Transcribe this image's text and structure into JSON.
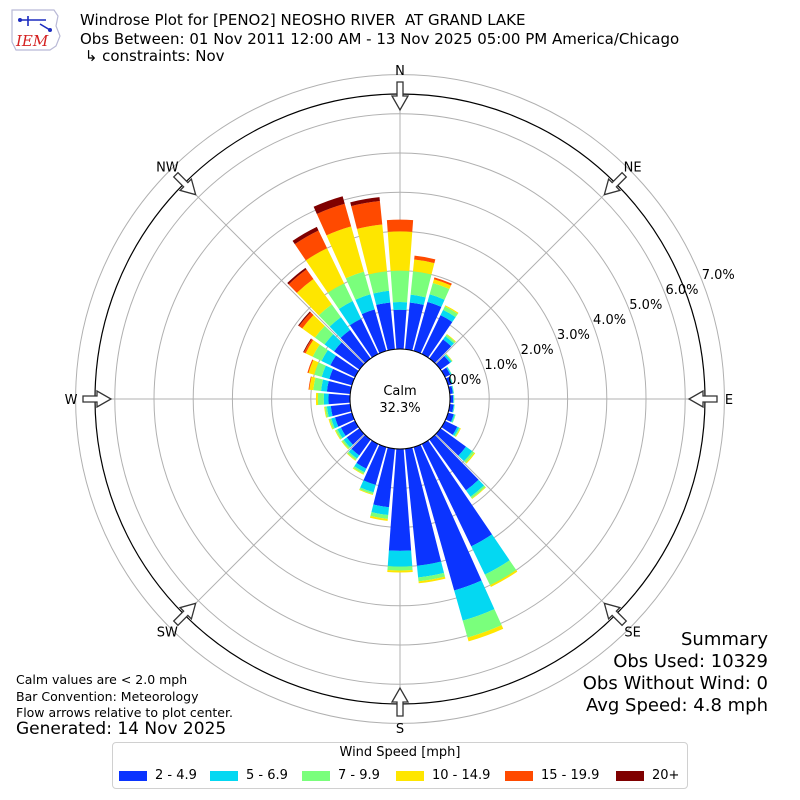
{
  "header": {
    "logo_text": "IEM",
    "title_line1": "Windrose Plot for [PENO2] NEOSHO RIVER  AT GRAND LAKE",
    "title_line2": "Obs Between: 01 Nov 2011 12:00 AM - 13 Nov 2025 05:00 PM America/Chicago",
    "title_line3": " ↳ constraints: Nov"
  },
  "notes": {
    "calm_note": "Calm values are < 2.0 mph",
    "bar_convention": "Bar Convention: Meteorology",
    "flow_note": "Flow arrows relative to plot center.",
    "generated": "Generated: 14 Nov 2025"
  },
  "summary": {
    "heading": "Summary",
    "obs_used": "Obs Used: 10329",
    "obs_without_wind": "Obs Without Wind: 0",
    "avg_speed": "Avg Speed: 4.8 mph"
  },
  "legend": {
    "title": "Wind Speed [mph]",
    "items": [
      {
        "label": "2 - 4.9",
        "color": "#0b34ff"
      },
      {
        "label": "5 - 6.9",
        "color": "#04d8f2"
      },
      {
        "label": "7 - 9.9",
        "color": "#7aff7c"
      },
      {
        "label": "10 - 14.9",
        "color": "#fee600"
      },
      {
        "label": "15 - 19.9",
        "color": "#ff4a00"
      },
      {
        "label": "20+",
        "color": "#7f0000"
      }
    ]
  },
  "chart_data": {
    "type": "windrose",
    "calm_label": "Calm",
    "calm_percent": "32.3%",
    "direction_labels": [
      "N",
      "NE",
      "E",
      "SE",
      "S",
      "SW",
      "W",
      "NW"
    ],
    "radial_ticks": [
      "0.0%",
      "1.0%",
      "2.0%",
      "3.0%",
      "4.0%",
      "5.0%",
      "6.0%",
      "7.0%"
    ],
    "radial_max_percent": 7.0,
    "sector_count": 36,
    "sector_directions_deg": [
      0,
      10,
      20,
      30,
      40,
      50,
      60,
      70,
      80,
      90,
      100,
      110,
      120,
      130,
      140,
      150,
      160,
      170,
      180,
      190,
      200,
      210,
      220,
      230,
      240,
      250,
      260,
      270,
      280,
      290,
      300,
      310,
      320,
      330,
      340,
      350
    ],
    "speed_bins": [
      "2 - 4.9",
      "5 - 6.9",
      "7 - 9.9",
      "10 - 14.9",
      "15 - 19.9",
      "20+"
    ],
    "series": [
      {
        "name": "2 - 4.9",
        "color": "#0b34ff",
        "values": [
          1.0,
          1.2,
          1.3,
          1.1,
          0.6,
          0.3,
          0.15,
          0.1,
          0.08,
          0.08,
          0.1,
          0.15,
          0.35,
          0.8,
          1.6,
          2.9,
          3.8,
          3.0,
          2.6,
          1.5,
          1.0,
          0.7,
          0.5,
          0.4,
          0.4,
          0.45,
          0.5,
          0.55,
          0.6,
          0.6,
          0.7,
          0.8,
          0.9,
          1.0,
          1.1,
          1.2
        ]
      },
      {
        "name": "5 - 6.9",
        "color": "#04d8f2",
        "values": [
          0.2,
          0.2,
          0.2,
          0.15,
          0.1,
          0.05,
          0.03,
          0.02,
          0.02,
          0.02,
          0.02,
          0.03,
          0.05,
          0.2,
          0.2,
          0.8,
          0.8,
          0.3,
          0.4,
          0.2,
          0.2,
          0.1,
          0.1,
          0.1,
          0.1,
          0.1,
          0.1,
          0.12,
          0.15,
          0.2,
          0.25,
          0.3,
          0.4,
          0.5,
          0.4,
          0.3
        ]
      },
      {
        "name": "7 - 9.9",
        "color": "#7aff7c",
        "values": [
          0.8,
          0.6,
          0.3,
          0.1,
          0.05,
          0.02,
          0.01,
          0.01,
          0.01,
          0.01,
          0.01,
          0.02,
          0.03,
          0.06,
          0.05,
          0.3,
          0.45,
          0.1,
          0.1,
          0.1,
          0.05,
          0.05,
          0.05,
          0.05,
          0.05,
          0.05,
          0.05,
          0.15,
          0.2,
          0.2,
          0.25,
          0.3,
          0.4,
          0.5,
          0.6,
          0.5
        ]
      },
      {
        "name": "10 - 14.9",
        "color": "#fee600",
        "values": [
          1.0,
          0.3,
          0.1,
          0.03,
          0.02,
          0.01,
          0.0,
          0.0,
          0.0,
          0.0,
          0.0,
          0.0,
          0.02,
          0.03,
          0.02,
          0.05,
          0.1,
          0.05,
          0.05,
          0.05,
          0.02,
          0.02,
          0.02,
          0.02,
          0.02,
          0.02,
          0.02,
          0.05,
          0.1,
          0.15,
          0.2,
          0.4,
          0.8,
          1.0,
          1.2,
          1.2
        ]
      },
      {
        "name": "15 - 19.9",
        "color": "#ff4a00",
        "values": [
          0.3,
          0.1,
          0.05,
          0.0,
          0.0,
          0.0,
          0.0,
          0.0,
          0.0,
          0.0,
          0.0,
          0.0,
          0.0,
          0.0,
          0.0,
          0.0,
          0.0,
          0.0,
          0.0,
          0.0,
          0.0,
          0.0,
          0.0,
          0.0,
          0.0,
          0.0,
          0.0,
          0.0,
          0.02,
          0.03,
          0.05,
          0.1,
          0.3,
          0.5,
          0.6,
          0.6
        ]
      },
      {
        "name": "20+",
        "color": "#7f0000",
        "values": [
          0.0,
          0.0,
          0.0,
          0.0,
          0.0,
          0.0,
          0.0,
          0.0,
          0.0,
          0.0,
          0.0,
          0.0,
          0.0,
          0.0,
          0.0,
          0.0,
          0.0,
          0.0,
          0.0,
          0.0,
          0.0,
          0.0,
          0.0,
          0.0,
          0.0,
          0.0,
          0.0,
          0.0,
          0.0,
          0.0,
          0.02,
          0.03,
          0.05,
          0.1,
          0.2,
          0.1
        ]
      }
    ]
  }
}
